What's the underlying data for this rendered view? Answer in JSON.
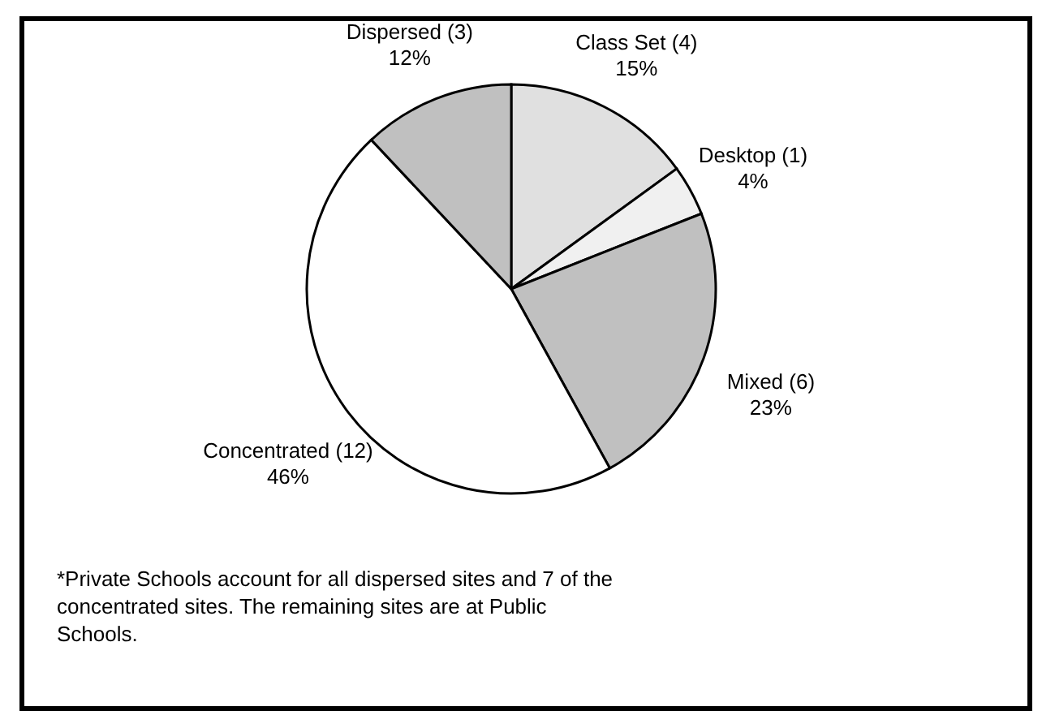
{
  "chart_data": {
    "type": "pie",
    "categories": [
      "Class Set (4)",
      "Desktop (1)",
      "Mixed (6)",
      "Concentrated (12)",
      "Dispersed (3)"
    ],
    "values": [
      15,
      4,
      23,
      46,
      12
    ],
    "value_labels": [
      "15%",
      "4%",
      "23%",
      "46%",
      "12%"
    ],
    "colors": [
      "#e0e0e0",
      "#f0f0f0",
      "#c0c0c0",
      "#ffffff",
      "#c0c0c0"
    ],
    "annotations": [
      "*Private Schools account for all dispersed sites and 7 of the concentrated sites.  The remaining sites are at Public Schools."
    ]
  }
}
